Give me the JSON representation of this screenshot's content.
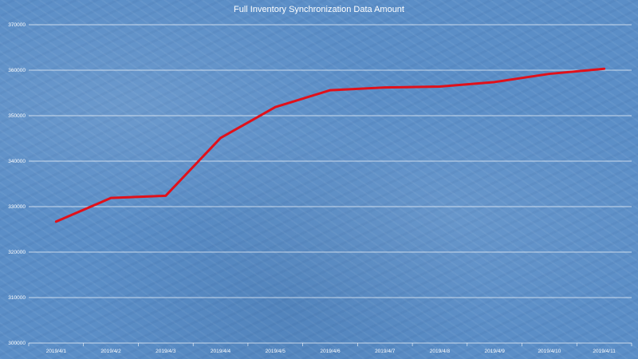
{
  "chart_data": {
    "type": "line",
    "title": "Full Inventory  Synchronization Data Amount",
    "xlabel": "",
    "ylabel": "",
    "categories": [
      "2019/4/1",
      "2019/4/2",
      "2019/4/3",
      "2019/4/4",
      "2019/4/5",
      "2019/4/6",
      "2019/4/7",
      "2019/4/8",
      "2019/4/9",
      "2019/4/10",
      "2019/4/11"
    ],
    "series": [
      {
        "values": [
          326700,
          331900,
          332400,
          345100,
          351900,
          355600,
          356200,
          356400,
          357400,
          359200,
          360300
        ]
      }
    ],
    "ylim": [
      300000,
      370000
    ],
    "yticks": [
      300000,
      310000,
      320000,
      330000,
      340000,
      350000,
      360000,
      370000
    ],
    "grid": true,
    "legend": "none",
    "colors": {
      "line": "#e0101a",
      "gridline": "#ffffff",
      "background": "#5b8ec7",
      "text": "#ffffff"
    }
  }
}
